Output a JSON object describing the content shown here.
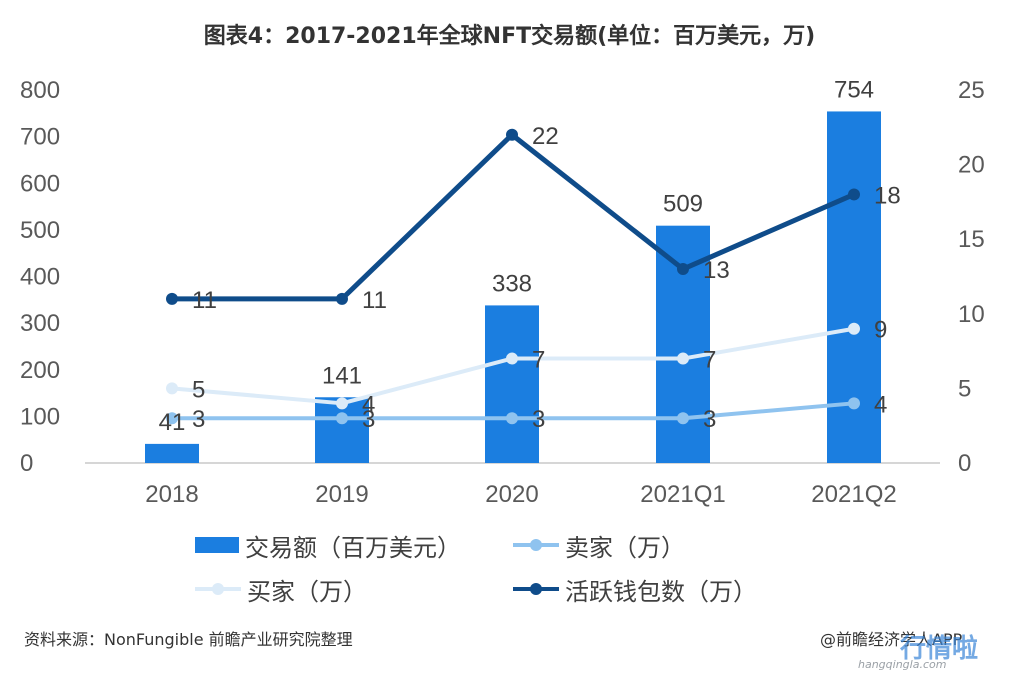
{
  "chart_title": "图表4：2017-2021年全球NFT交易额(单位：百万美元，万)",
  "chart_data": {
    "type": "bar",
    "title": "图表4：2017-2021年全球NFT交易额(单位：百万美元，万)",
    "categories": [
      "2018",
      "2019",
      "2020",
      "2021Q1",
      "2021Q2"
    ],
    "y_left": {
      "ylim": [
        0,
        800
      ],
      "ticks": [
        "0",
        "100",
        "200",
        "300",
        "400",
        "500",
        "600",
        "700",
        "800"
      ]
    },
    "y_right": {
      "ylim": [
        0,
        25
      ],
      "ticks": [
        "0",
        "5",
        "10",
        "15",
        "20",
        "25"
      ]
    },
    "series": [
      {
        "name": "交易额（百万美元）",
        "type": "bar",
        "axis": "left",
        "color": "#1b7ee0",
        "values": [
          41,
          141,
          338,
          509,
          754
        ],
        "labels": [
          "41",
          "141",
          "338",
          "509",
          "754"
        ]
      },
      {
        "name": "卖家（万）",
        "type": "line",
        "axis": "right",
        "color": "#8fc3ef",
        "values": [
          3,
          3,
          3,
          3,
          4
        ],
        "labels": [
          "3",
          "3",
          "3",
          "3",
          "4"
        ]
      },
      {
        "name": "买家（万）",
        "type": "line",
        "axis": "right",
        "color": "#dcebf8",
        "values": [
          5,
          4,
          7,
          7,
          9
        ],
        "labels": [
          "5",
          "4",
          "7",
          "7",
          "9"
        ]
      },
      {
        "name": "活跃钱包数（万）",
        "type": "line",
        "axis": "right",
        "color": "#0f4c8a",
        "values": [
          11,
          11,
          22,
          13,
          18
        ],
        "labels": [
          "11",
          "11",
          "22",
          "13",
          "18"
        ]
      }
    ],
    "legend_placement": "bottom",
    "grid": false
  },
  "legend": {
    "items": [
      {
        "label": "交易额（百万美元）",
        "kind": "bar",
        "color": "#1b7ee0"
      },
      {
        "label": "卖家（万）",
        "kind": "line",
        "color": "#8fc3ef"
      },
      {
        "label": "买家（万）",
        "kind": "line",
        "color": "#dcebf8"
      },
      {
        "label": "活跃钱包数（万）",
        "kind": "line",
        "color": "#0f4c8a"
      }
    ]
  },
  "footer": {
    "source": "资料来源：NonFungible 前瞻产业研究院整理",
    "credit": "@前瞻经济学人APP"
  },
  "watermark": {
    "site": "hangqingla.com",
    "logo_text": "行情啦"
  }
}
